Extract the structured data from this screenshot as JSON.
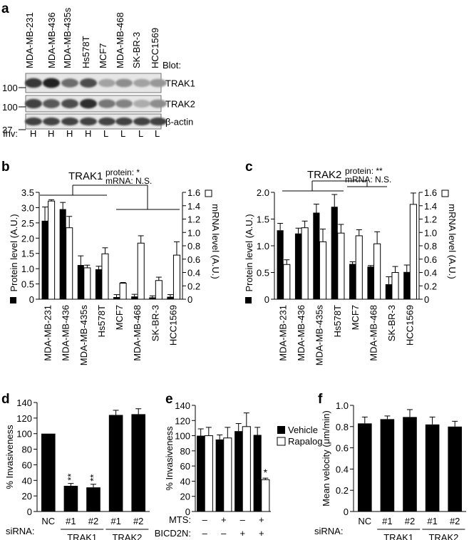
{
  "panels": {
    "a": {
      "label": "a",
      "lanes": [
        "MDA-MB-231",
        "MDA-MB-436",
        "MDA-MB-435s",
        "Hs578T",
        "MCF7",
        "MDA-MB-468",
        "SK-BR-3",
        "HCC1569"
      ],
      "blot_header": "Blot:",
      "blots": [
        {
          "name": "TRAK1",
          "marker": "100",
          "intensity": [
            0.85,
            0.95,
            0.6,
            0.75,
            0.35,
            0.45,
            0.35,
            0.4
          ]
        },
        {
          "name": "TRAK2",
          "marker": "100",
          "intensity": [
            0.8,
            0.7,
            0.75,
            0.9,
            0.55,
            0.5,
            0.3,
            0.45
          ]
        },
        {
          "name": "β-actin",
          "marker": "37",
          "intensity": [
            0.8,
            0.8,
            0.8,
            0.8,
            0.8,
            0.8,
            0.8,
            0.8
          ]
        }
      ],
      "inv_label": "Inv:",
      "inv": [
        "H",
        "H",
        "H",
        "H",
        "L",
        "L",
        "L",
        "L"
      ]
    },
    "b": {
      "label": "b",
      "title": "TRAK1",
      "stat_protein": "protein: *",
      "stat_mrna": "mRNA: N.S."
    },
    "c": {
      "label": "c",
      "title": "TRAK2",
      "stat_protein": "protein: **",
      "stat_mrna": "mRNA: N.S."
    },
    "d": {
      "label": "d",
      "siRNA_label": "siRNA:",
      "group_labels": [
        "TRAK1",
        "TRAK2"
      ]
    },
    "e": {
      "label": "e",
      "row_labels": [
        "MTS:",
        "BICD2N:"
      ],
      "legend": [
        "Vehicle",
        "Rapalog"
      ]
    },
    "f": {
      "label": "f",
      "siRNA_label": "siRNA:",
      "group_labels": [
        "TRAK1",
        "TRAK2"
      ]
    }
  },
  "chart_data": [
    {
      "id": "b",
      "type": "bar",
      "categories": [
        "MDA-MB-231",
        "MDA-MB-436",
        "MDA-MB-435s",
        "Hs578T",
        "MCF7",
        "MDA-MB-468",
        "SK-BR-3",
        "HCC1569"
      ],
      "series": [
        {
          "name": "Protein level (A.U.)",
          "values": [
            2.57,
            2.95,
            1.12,
            0.98,
            0.07,
            0.09,
            0.06,
            0.08
          ],
          "errors": [
            0.45,
            0.22,
            0.3,
            0.1,
            0.08,
            0.07,
            0.05,
            0.07
          ]
        },
        {
          "name": "mRNA level (A.U.)",
          "values": [
            1.47,
            1.07,
            0.47,
            0.68,
            0.24,
            0.84,
            0.28,
            0.66
          ],
          "errors": [
            0.02,
            0.17,
            0.04,
            0.09,
            0.01,
            0.11,
            0.05,
            0.2
          ]
        }
      ],
      "ylabel": "Protein level (A.U.)",
      "y2label": "mRNA level (A.U.)",
      "yticks": [
        "0",
        "0.5",
        "1.0",
        "1.5",
        "2.0",
        "2.5",
        "3.0",
        "3.5"
      ],
      "y2ticks": [
        "0",
        "0.2",
        "0.4",
        "0.6",
        "0.8",
        "1.0",
        "1.2",
        "1.4",
        "1.6"
      ],
      "ylim": [
        0,
        3.5
      ],
      "y2lim": [
        0,
        1.6
      ]
    },
    {
      "id": "c",
      "type": "bar",
      "categories": [
        "MDA-MB-231",
        "MDA-MB-436",
        "MDA-MB-435s",
        "Hs578T",
        "MCF7",
        "MDA-MB-468",
        "SK-BR-3",
        "HCC1569"
      ],
      "series": [
        {
          "name": "Protein level (A.U.)",
          "values": [
            1.29,
            1.23,
            1.62,
            1.73,
            0.66,
            0.61,
            0.28,
            0.51
          ],
          "errors": [
            0.13,
            0.1,
            0.16,
            0.23,
            0.04,
            0.02,
            0.14,
            0.13
          ]
        },
        {
          "name": "mRNA level (A.U.)",
          "values": [
            0.52,
            1.07,
            0.86,
            0.99,
            0.95,
            0.83,
            0.4,
            1.42
          ],
          "errors": [
            0.07,
            0.1,
            0.19,
            0.13,
            0.09,
            0.18,
            0.09,
            0.17
          ]
        }
      ],
      "ylabel": "Protein level (A.U.)",
      "y2label": "mRNA level (A.U.)",
      "yticks": [
        "0",
        "0.5",
        "1.0",
        "1.5",
        "2.0"
      ],
      "y2ticks": [
        "0",
        "0.2",
        "0.4",
        "0.6",
        "0.8",
        "1.0",
        "1.2",
        "1.4",
        "1.6"
      ],
      "ylim": [
        0,
        2.0
      ],
      "y2lim": [
        0,
        1.6
      ]
    },
    {
      "id": "d",
      "type": "bar",
      "categories": [
        "NC",
        "#1",
        "#2",
        "#1",
        "#2"
      ],
      "values": [
        100,
        33,
        31,
        124,
        125
      ],
      "errors": [
        0,
        3,
        4,
        6,
        7
      ],
      "sig": [
        "",
        "**",
        "**",
        "",
        ""
      ],
      "ylabel": "% Invasiveness",
      "yticks": [
        "0",
        "20",
        "40",
        "60",
        "80",
        "100",
        "120",
        "140"
      ],
      "ylim": [
        0,
        140
      ]
    },
    {
      "id": "e",
      "type": "bar",
      "conditions": [
        {
          "mts": "–",
          "bicd2n": "–"
        },
        {
          "mts": "+",
          "bicd2n": "–"
        },
        {
          "mts": "–",
          "bicd2n": "+"
        },
        {
          "mts": "+",
          "bicd2n": "+"
        }
      ],
      "series": [
        {
          "name": "Vehicle",
          "values": [
            100,
            95,
            106,
            101
          ],
          "errors": [
            9,
            6,
            10,
            10
          ]
        },
        {
          "name": "Rapalog",
          "values": [
            100,
            97,
            112,
            42
          ],
          "errors": [
            11,
            14,
            18,
            2
          ]
        }
      ],
      "sig": [
        "",
        "",
        "",
        "*"
      ],
      "ylabel": "% Invasiveness",
      "yticks": [
        "0",
        "20",
        "40",
        "60",
        "80",
        "100",
        "120",
        "140"
      ],
      "ylim": [
        0,
        140
      ]
    },
    {
      "id": "f",
      "type": "bar",
      "categories": [
        "NC",
        "#1",
        "#2",
        "#1",
        "#2"
      ],
      "values": [
        0.83,
        0.87,
        0.89,
        0.82,
        0.8
      ],
      "errors": [
        0.06,
        0.03,
        0.07,
        0.07,
        0.05
      ],
      "ylabel": "Mean velocity (μm/min)",
      "yticks": [
        "0",
        "0.2",
        "0.4",
        "0.6",
        "0.8",
        "1.0"
      ],
      "ylim": [
        0,
        1.0
      ]
    }
  ]
}
